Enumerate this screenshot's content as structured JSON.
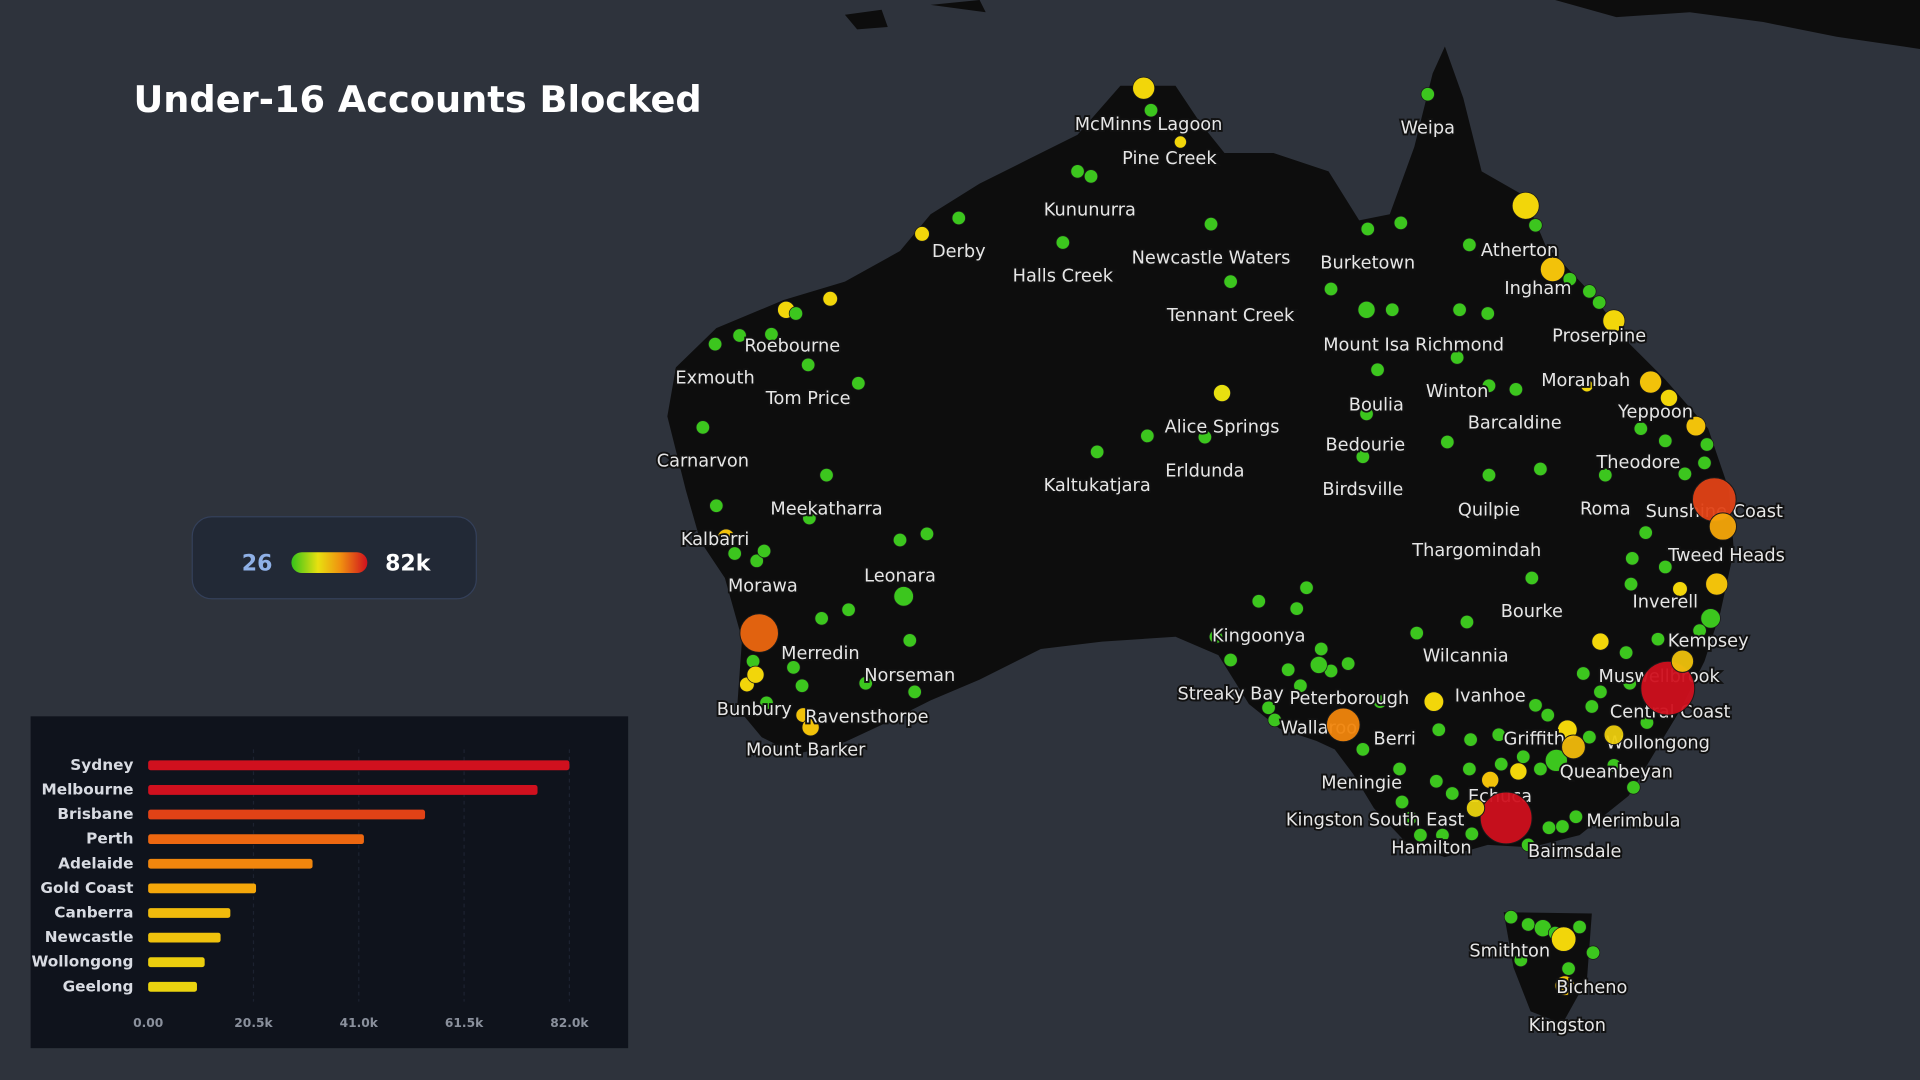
{
  "chart_data": {
    "type": "bar",
    "title": "Under-16 Accounts Blocked",
    "categories": [
      "Sydney",
      "Melbourne",
      "Brisbane",
      "Perth",
      "Adelaide",
      "Gold Coast",
      "Canberra",
      "Newcastle",
      "Wollongong",
      "Geelong"
    ],
    "values": [
      82000,
      75800,
      53900,
      42000,
      32000,
      21000,
      16000,
      14100,
      11000,
      9500
    ],
    "xlim": [
      0,
      82000
    ],
    "xticks": [
      {
        "value": 0,
        "label": "0.00"
      },
      {
        "value": 20500,
        "label": "20.5k"
      },
      {
        "value": 41000,
        "label": "41.0k"
      },
      {
        "value": 61500,
        "label": "61.5k"
      },
      {
        "value": 82000,
        "label": "82.0k"
      }
    ],
    "color_range": [
      26,
      {
        "value": 82000,
        "label": "82k"
      }
    ]
  },
  "map": {
    "places": [
      "McMinns Lagoon",
      "Pine Creek",
      "Weipa",
      "Kununurra",
      "Derby",
      "Halls Creek",
      "Newcastle Waters",
      "Burketown",
      "Atherton",
      "Ingham",
      "Tennant Creek",
      "Mount Isa",
      "Richmond",
      "Proserpine",
      "Roebourne",
      "Exmouth",
      "Tom Price",
      "Winton",
      "Moranbah",
      "Boulia",
      "Yeppoon",
      "Alice Springs",
      "Barcaldine",
      "Carnarvon",
      "Bedourie",
      "Theodore",
      "Erldunda",
      "Kaltukatjara",
      "Birdsville",
      "Meekatharra",
      "Quilpie",
      "Roma",
      "Sunshine Coast",
      "Kalbarri",
      "Thargomindah",
      "Tweed Heads",
      "Leonara",
      "Morawa",
      "Inverell",
      "Bourke",
      "Kingoonya",
      "Kempsey",
      "Merredin",
      "Wilcannia",
      "Norseman",
      "Muswellbrook",
      "Streaky Bay",
      "Peterborough",
      "Ivanhoe",
      "Bunbury",
      "Central Coast",
      "Ravensthorpe",
      "Wallaroo",
      "Berri",
      "Griffith",
      "Wollongong",
      "Mount Barker",
      "Queanbeyan",
      "Meningie",
      "Echuca",
      "Kingston South East",
      "Merimbula",
      "Hamilton",
      "Bairnsdale",
      "Smithton",
      "Bicheno",
      "Kingston"
    ]
  }
}
